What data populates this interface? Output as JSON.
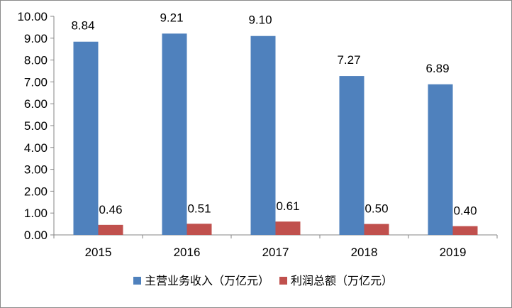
{
  "chart_data": {
    "type": "bar",
    "categories": [
      "2015",
      "2016",
      "2017",
      "2018",
      "2019"
    ],
    "series": [
      {
        "name": "主营业务收入（万亿元）",
        "values": [
          8.84,
          9.21,
          9.1,
          7.27,
          6.89
        ],
        "labels": [
          "8.84",
          "9.21",
          "9.10",
          "7.27",
          "6.89"
        ],
        "color": "#4f81bd"
      },
      {
        "name": "利润总额（万亿元）",
        "values": [
          0.46,
          0.51,
          0.61,
          0.5,
          0.4
        ],
        "labels": [
          "0.46",
          "0.51",
          "0.61",
          "0.50",
          "0.40"
        ],
        "color": "#c0504d"
      }
    ],
    "title": "",
    "xlabel": "",
    "ylabel": "",
    "ylim": [
      0,
      10
    ],
    "yticks": [
      "0.00",
      "1.00",
      "2.00",
      "3.00",
      "4.00",
      "5.00",
      "6.00",
      "7.00",
      "8.00",
      "9.00",
      "10.00"
    ],
    "grid": false,
    "legend_position": "bottom"
  }
}
